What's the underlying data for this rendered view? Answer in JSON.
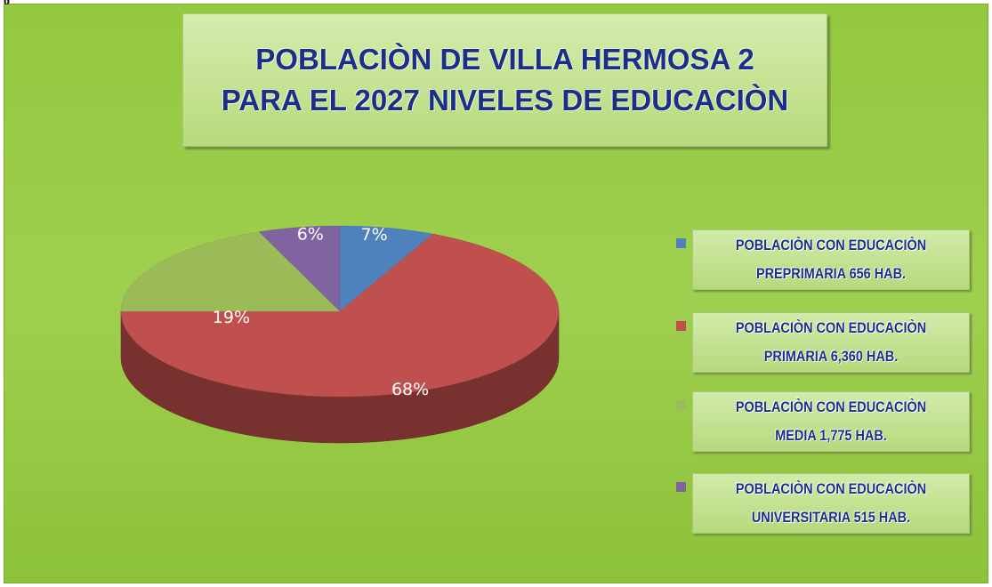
{
  "corner_text": "o",
  "chart_data": {
    "type": "pie3d",
    "title": [
      "POBLACIÒN DE VILLA HERMOSA 2",
      "PARA EL 2027 NIVELES DE EDUCACIÒN"
    ],
    "categories": [
      "POBLACIÒN CON EDUCACIÒN PREPRIMARIA 656 HAB.",
      "POBLACIÒN CON EDUCACIÒN PRIMARIA 6,360 HAB.",
      "POBLACIÒN CON EDUCACIÒN MEDIA 1,775 HAB.",
      "POBLACIÒN CON EDUCACIÒN UNIVERSITARIA 515 HAB."
    ],
    "values": [
      7,
      68,
      19,
      6
    ],
    "value_labels": [
      "7%",
      "68%",
      "19%",
      "6%"
    ],
    "colors": [
      "#4f81bd",
      "#c0504d",
      "#9bbb59",
      "#8064a2"
    ],
    "legend": "right"
  }
}
